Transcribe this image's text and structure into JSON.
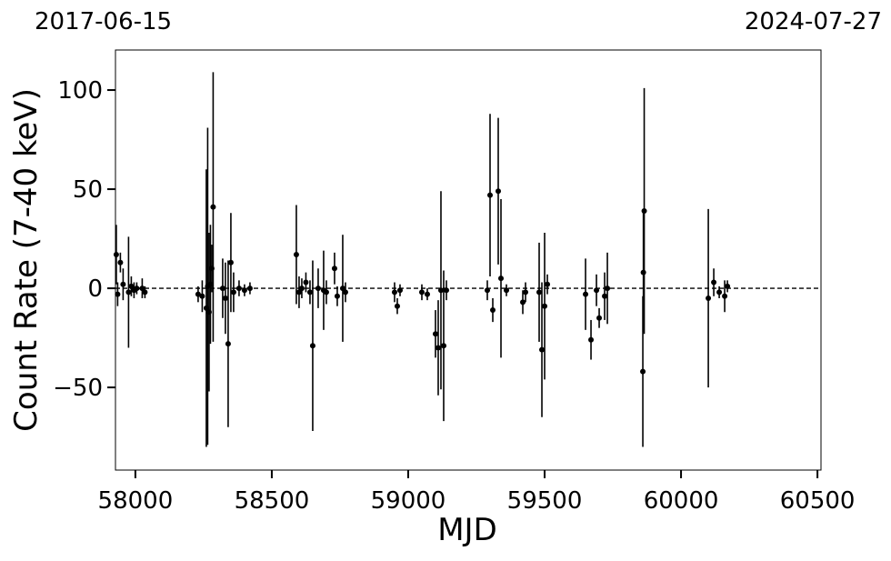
{
  "chart_data": {
    "type": "errorbar",
    "top_labels": [
      "2017-06-15",
      "2024-07-27"
    ],
    "xlabel": "MJD",
    "ylabel": "Count Rate (7-40 keV)",
    "color": "#000000",
    "hline": 0,
    "xlim": [
      57927,
      60513
    ],
    "ylim": [
      -91.7,
      120.2
    ],
    "xticks": [
      58000,
      58500,
      59000,
      59500,
      60000,
      60500
    ],
    "yticks": [
      {
        "value": -50,
        "label": "−50"
      },
      0,
      50,
      100
    ],
    "x": [
      57930,
      57935,
      57945,
      57955,
      57975,
      57985,
      57995,
      58005,
      58025,
      58035,
      58230,
      58245,
      58260,
      58265,
      58270,
      58275,
      58280,
      58285,
      58320,
      58330,
      58340,
      58350,
      58360,
      58380,
      58400,
      58420,
      58590,
      58600,
      58610,
      58625,
      58640,
      58650,
      58670,
      58690,
      58700,
      58730,
      58740,
      58760,
      58770,
      58950,
      58960,
      58970,
      59050,
      59070,
      59100,
      59110,
      59120,
      59130,
      59140,
      59290,
      59300,
      59310,
      59330,
      59340,
      59360,
      59420,
      59430,
      59480,
      59490,
      59500,
      59510,
      59650,
      59670,
      59690,
      59700,
      59720,
      59730,
      59860,
      59865,
      59862,
      60100,
      60120,
      60140,
      60160,
      60170
    ],
    "values": [
      17,
      -3,
      13,
      2,
      -2,
      1,
      -1,
      0,
      0,
      -2,
      -3,
      -4,
      -10,
      1,
      -12,
      2,
      10,
      41,
      0,
      -5,
      -28,
      13,
      -2,
      0,
      -1,
      0,
      17,
      -2,
      0,
      3,
      -2,
      -29,
      0,
      -1,
      -2,
      10,
      -4,
      0,
      -2,
      -2,
      -9,
      -1,
      -2,
      -3,
      -23,
      -30,
      -1,
      -29,
      -1,
      -1,
      47,
      -11,
      49,
      5,
      -1,
      -7,
      -2,
      -2,
      -31,
      -9,
      2,
      -3,
      -26,
      -1,
      -15,
      -4,
      0,
      -42,
      39,
      8,
      -5,
      3,
      -2,
      -4,
      1
    ],
    "errors": [
      15,
      6,
      5,
      8,
      28,
      5,
      4,
      3,
      5,
      3,
      4,
      8,
      70,
      80,
      40,
      30,
      12,
      68,
      15,
      18,
      42,
      25,
      10,
      4,
      3,
      3,
      25,
      8,
      5,
      5,
      6,
      43,
      10,
      20,
      6,
      8,
      5,
      27,
      5,
      5,
      4,
      3,
      4,
      3,
      12,
      24,
      50,
      38,
      5,
      5,
      41,
      6,
      37,
      40,
      3,
      6,
      5,
      25,
      34,
      37,
      5,
      18,
      10,
      8,
      5,
      12,
      18,
      38,
      62,
      30,
      45,
      7,
      3,
      8,
      3
    ]
  }
}
